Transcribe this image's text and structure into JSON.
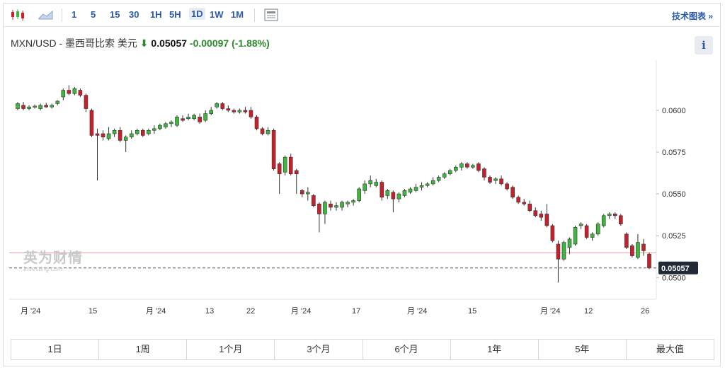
{
  "toolbar": {
    "timeframes": [
      "1",
      "5",
      "15",
      "30",
      "1H",
      "5H",
      "1D",
      "1W",
      "1M"
    ],
    "active_timeframe": "1D",
    "tech_chart_label": "技术图表 »"
  },
  "quote": {
    "symbol": "MXN/USD - 墨西哥比索 美元",
    "direction_arrow": "⬇",
    "last": "0.05057",
    "change": "-0.00097",
    "change_pct": "(-1.88%)",
    "down_color": "#2d8a2d"
  },
  "info_label": "i",
  "watermark": {
    "cn": "英为财情",
    "en": "Investing.com"
  },
  "range_buttons": [
    "1日",
    "1周",
    "1个月",
    "3个月",
    "6个月",
    "1年",
    "5年",
    "最大值"
  ],
  "chart_data": {
    "type": "candlestick",
    "y_ticks": [
      "0.0600",
      "0.0575",
      "0.0550",
      "0.0525",
      "0.0500"
    ],
    "ylim": [
      0.0487,
      0.063
    ],
    "x_tick_labels": [
      "月 '24",
      "15",
      "月 '24",
      "13",
      "22",
      "月 '24",
      "17",
      "月 '24",
      "15",
      "月 '24",
      "12",
      "26"
    ],
    "last_price_label": "0.05057",
    "last_price": 0.05057,
    "reference_line": 0.05148,
    "colors": {
      "up": "#3cb93c",
      "down": "#c8202b"
    },
    "candles": [
      [
        0.0601,
        0.0604,
        0.06,
        0.0605
      ],
      [
        0.0603,
        0.0601,
        0.06,
        0.0605
      ],
      [
        0.0601,
        0.0602,
        0.06,
        0.0603
      ],
      [
        0.0602,
        0.06025,
        0.0601,
        0.06035
      ],
      [
        0.0601,
        0.0603,
        0.06,
        0.0604
      ],
      [
        0.0603,
        0.0602,
        0.06015,
        0.06045
      ],
      [
        0.0602,
        0.0603,
        0.0601,
        0.0604
      ],
      [
        0.0604,
        0.06055,
        0.0603,
        0.0606
      ],
      [
        0.0608,
        0.0612,
        0.0606,
        0.0613
      ],
      [
        0.0612,
        0.061,
        0.0609,
        0.0615
      ],
      [
        0.061,
        0.0613,
        0.0609,
        0.0614
      ],
      [
        0.0612,
        0.0609,
        0.0608,
        0.0613
      ],
      [
        0.0609,
        0.0601,
        0.0599,
        0.061
      ],
      [
        0.06,
        0.0585,
        0.0584,
        0.0601
      ],
      [
        0.0586,
        0.0585,
        0.0558,
        0.0589
      ],
      [
        0.0586,
        0.0584,
        0.0582,
        0.0588
      ],
      [
        0.0583,
        0.0586,
        0.0582,
        0.059
      ],
      [
        0.0586,
        0.0588,
        0.0584,
        0.0589
      ],
      [
        0.0588,
        0.0582,
        0.0581,
        0.059
      ],
      [
        0.0582,
        0.0584,
        0.0575,
        0.0585
      ],
      [
        0.0584,
        0.0586,
        0.0583,
        0.0588
      ],
      [
        0.0586,
        0.0588,
        0.0585,
        0.0589
      ],
      [
        0.0588,
        0.0585,
        0.0584,
        0.0589
      ],
      [
        0.0586,
        0.0588,
        0.0585,
        0.0589
      ],
      [
        0.0588,
        0.0589,
        0.0586,
        0.0591
      ],
      [
        0.0589,
        0.0591,
        0.0588,
        0.0592
      ],
      [
        0.059,
        0.0592,
        0.0589,
        0.0593
      ],
      [
        0.0592,
        0.0593,
        0.059,
        0.0594
      ],
      [
        0.0591,
        0.0596,
        0.059,
        0.0597
      ],
      [
        0.0595,
        0.0594,
        0.0593,
        0.0597
      ],
      [
        0.0595,
        0.0596,
        0.0594,
        0.0598
      ],
      [
        0.0595,
        0.0597,
        0.0594,
        0.0598
      ],
      [
        0.0596,
        0.0593,
        0.0592,
        0.0598
      ],
      [
        0.0594,
        0.0598,
        0.0593,
        0.06
      ],
      [
        0.0598,
        0.06,
        0.0597,
        0.0602
      ],
      [
        0.0602,
        0.0604,
        0.0601,
        0.0605
      ],
      [
        0.0604,
        0.0601,
        0.06,
        0.0605
      ],
      [
        0.0601,
        0.06,
        0.0599,
        0.0603
      ],
      [
        0.06,
        0.0599,
        0.0598,
        0.0601
      ],
      [
        0.0599,
        0.06,
        0.0598,
        0.0601
      ],
      [
        0.06,
        0.0599,
        0.0598,
        0.0602
      ],
      [
        0.06,
        0.0596,
        0.0595,
        0.0602
      ],
      [
        0.0596,
        0.0589,
        0.0588,
        0.0597
      ],
      [
        0.0589,
        0.0586,
        0.0585,
        0.059
      ],
      [
        0.0586,
        0.0588,
        0.0585,
        0.059
      ],
      [
        0.0588,
        0.0565,
        0.0564,
        0.0589
      ],
      [
        0.0568,
        0.0562,
        0.055,
        0.0569
      ],
      [
        0.0563,
        0.0572,
        0.0561,
        0.0573
      ],
      [
        0.0572,
        0.0562,
        0.0561,
        0.0574
      ],
      [
        0.0564,
        0.0562,
        0.055,
        0.0565
      ],
      [
        0.0552,
        0.055,
        0.0548,
        0.0553
      ],
      [
        0.055,
        0.0551,
        0.0546,
        0.0554
      ],
      [
        0.0549,
        0.0543,
        0.0542,
        0.055
      ],
      [
        0.0544,
        0.0538,
        0.0527,
        0.0545
      ],
      [
        0.0538,
        0.0545,
        0.0532,
        0.0546
      ],
      [
        0.0544,
        0.0542,
        0.054,
        0.0546
      ],
      [
        0.0542,
        0.0543,
        0.054,
        0.0545
      ],
      [
        0.0542,
        0.0545,
        0.054,
        0.0546
      ],
      [
        0.0544,
        0.0545,
        0.0542,
        0.0546
      ],
      [
        0.0545,
        0.0546,
        0.0543,
        0.0547
      ],
      [
        0.0546,
        0.0553,
        0.0545,
        0.0554
      ],
      [
        0.0552,
        0.0556,
        0.055,
        0.0558
      ],
      [
        0.0556,
        0.0558,
        0.0554,
        0.0561
      ],
      [
        0.0555,
        0.0557,
        0.0554,
        0.0559
      ],
      [
        0.0557,
        0.0548,
        0.0546,
        0.0558
      ],
      [
        0.0549,
        0.0552,
        0.0547,
        0.0553
      ],
      [
        0.0551,
        0.0547,
        0.0539,
        0.0552
      ],
      [
        0.0547,
        0.055,
        0.0545,
        0.0551
      ],
      [
        0.0549,
        0.0552,
        0.0548,
        0.0553
      ],
      [
        0.0551,
        0.0553,
        0.055,
        0.0554
      ],
      [
        0.0552,
        0.0554,
        0.0551,
        0.0556
      ],
      [
        0.0554,
        0.0555,
        0.0552,
        0.0557
      ],
      [
        0.0555,
        0.0556,
        0.0554,
        0.0557
      ],
      [
        0.0556,
        0.0558,
        0.0555,
        0.056
      ],
      [
        0.0558,
        0.056,
        0.0557,
        0.0561
      ],
      [
        0.056,
        0.0562,
        0.0559,
        0.0563
      ],
      [
        0.0562,
        0.0564,
        0.0561,
        0.0565
      ],
      [
        0.0564,
        0.0566,
        0.0563,
        0.0567
      ],
      [
        0.0566,
        0.0568,
        0.0564,
        0.0569
      ],
      [
        0.0568,
        0.0566,
        0.0565,
        0.0569
      ],
      [
        0.0566,
        0.0567,
        0.0565,
        0.0568
      ],
      [
        0.0568,
        0.0564,
        0.0563,
        0.0569
      ],
      [
        0.0565,
        0.056,
        0.0558,
        0.0566
      ],
      [
        0.056,
        0.0557,
        0.0556,
        0.0561
      ],
      [
        0.0558,
        0.0559,
        0.0556,
        0.056
      ],
      [
        0.0559,
        0.0556,
        0.0555,
        0.0561
      ],
      [
        0.0556,
        0.0553,
        0.0552,
        0.0557
      ],
      [
        0.0554,
        0.0548,
        0.0547,
        0.0555
      ],
      [
        0.0548,
        0.0545,
        0.0544,
        0.0549
      ],
      [
        0.0545,
        0.0544,
        0.0543,
        0.0547
      ],
      [
        0.0544,
        0.054,
        0.0539,
        0.0546
      ],
      [
        0.054,
        0.0537,
        0.0536,
        0.0542
      ],
      [
        0.0538,
        0.0536,
        0.0534,
        0.054
      ],
      [
        0.0538,
        0.0531,
        0.053,
        0.0544
      ],
      [
        0.0531,
        0.0522,
        0.0521,
        0.0532
      ],
      [
        0.052,
        0.0511,
        0.0497,
        0.0522
      ],
      [
        0.0511,
        0.0521,
        0.051,
        0.0522
      ],
      [
        0.0518,
        0.0523,
        0.0514,
        0.0524
      ],
      [
        0.052,
        0.053,
        0.0519,
        0.0531
      ],
      [
        0.0531,
        0.0532,
        0.0529,
        0.0533
      ],
      [
        0.0531,
        0.0524,
        0.0523,
        0.0532
      ],
      [
        0.0524,
        0.0526,
        0.0522,
        0.0527
      ],
      [
        0.0526,
        0.0532,
        0.0525,
        0.0533
      ],
      [
        0.0531,
        0.0537,
        0.053,
        0.0538
      ],
      [
        0.0537,
        0.0538,
        0.0535,
        0.0539
      ],
      [
        0.0538,
        0.0537,
        0.0535,
        0.0539
      ],
      [
        0.0537,
        0.0532,
        0.0531,
        0.0538
      ],
      [
        0.0526,
        0.0518,
        0.0517,
        0.0527
      ],
      [
        0.0519,
        0.0513,
        0.0512,
        0.052
      ],
      [
        0.0512,
        0.0521,
        0.0511,
        0.0526
      ],
      [
        0.052,
        0.0516,
        0.0513,
        0.0523
      ],
      [
        0.0514,
        0.05057,
        0.0505,
        0.0515
      ]
    ]
  }
}
